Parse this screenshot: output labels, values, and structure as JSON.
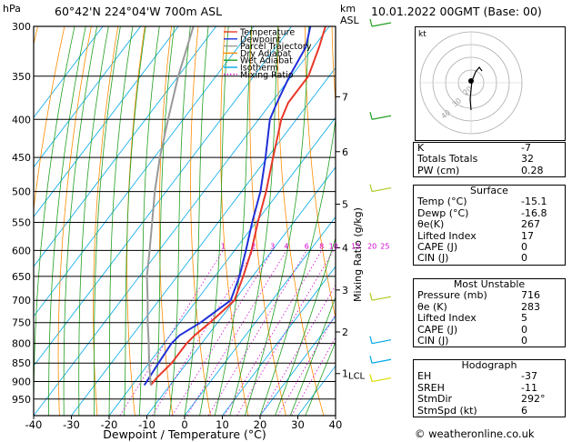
{
  "header": {
    "pressure_unit": "hPa",
    "location": "60°42'N  224°04'W  700m  ASL",
    "km_label": "km",
    "asl_label": "ASL",
    "datetime": "10.01.2022  00GMT  (Base: 00)"
  },
  "chart_data": {
    "type": "line",
    "subtype": "skew-T log-P",
    "xlabel": "Dewpoint / Temperature (°C)",
    "ylabel": "hPa",
    "right_axis_label": "Mixing Ratio (g/kg)",
    "x_ticks": [
      -40,
      -30,
      -20,
      -10,
      0,
      10,
      20,
      30,
      40
    ],
    "pressure_ticks": [
      300,
      350,
      400,
      450,
      500,
      550,
      600,
      650,
      700,
      750,
      800,
      850,
      900,
      950
    ],
    "height_ticks": [
      {
        "km": "1",
        "p": 878
      },
      {
        "km": "2",
        "p": 772
      },
      {
        "km": "3",
        "p": 678
      },
      {
        "km": "4",
        "p": 595
      },
      {
        "km": "5",
        "p": 520
      },
      {
        "km": "6",
        "p": 442
      },
      {
        "km": "7",
        "p": 373
      }
    ],
    "lcl": {
      "label": "LCL",
      "p": 882
    },
    "mixing_ratio_labels": [
      "1",
      "2",
      "3",
      "4",
      "6",
      "8",
      "10",
      "15",
      "20",
      "25"
    ],
    "mixing_ratio_values": [
      1,
      2,
      3,
      4,
      6,
      8,
      10,
      15,
      20,
      25
    ],
    "ylim": [
      1000,
      300
    ],
    "xlim": [
      -40,
      40
    ],
    "legend": {
      "position": "top-right",
      "items": [
        {
          "name": "Temperature",
          "color": "#e8382a",
          "style": "solid"
        },
        {
          "name": "Dewpoint",
          "color": "#2030d8",
          "style": "solid"
        },
        {
          "name": "Parcel Trajectory",
          "color": "#999999",
          "style": "solid"
        },
        {
          "name": "Dry Adiabat",
          "color": "#ff8c00",
          "style": "solid"
        },
        {
          "name": "Wet Adiabat",
          "color": "#22a022",
          "style": "solid"
        },
        {
          "name": "Isotherm",
          "color": "#00a8e8",
          "style": "solid"
        },
        {
          "name": "Mixing Ratio",
          "color": "#d000d0",
          "style": "dotted"
        }
      ]
    },
    "series": [
      {
        "name": "Temperature",
        "p": [
          910,
          890,
          850,
          800,
          780,
          750,
          700,
          650,
          600,
          550,
          500,
          450,
          400,
          380,
          350,
          320,
          300
        ],
        "t": [
          -15.1,
          -15,
          -14,
          -14,
          -13.5,
          -12,
          -10,
          -12.5,
          -15.5,
          -19.5,
          -23.5,
          -28.5,
          -34,
          -35.5,
          -35.5,
          -38.5,
          -41
        ]
      },
      {
        "name": "Dewpoint",
        "p": [
          910,
          890,
          850,
          800,
          780,
          750,
          700,
          650,
          600,
          550,
          500,
          450,
          400,
          380,
          350,
          320,
          300
        ],
        "t": [
          -16.8,
          -17,
          -17.5,
          -18,
          -17.5,
          -14.5,
          -11,
          -13.5,
          -17,
          -21,
          -25,
          -30.5,
          -37,
          -38.5,
          -40.5,
          -42,
          -45
        ]
      },
      {
        "name": "Parcel Trajectory",
        "p": [
          910,
          880,
          850,
          800,
          750,
          700,
          650,
          600,
          550,
          500,
          450,
          400,
          350,
          300
        ],
        "t": [
          -15.1,
          -17.5,
          -20,
          -24,
          -28.5,
          -33,
          -38,
          -42.5,
          -47.5,
          -53,
          -58.5,
          -64,
          -70,
          -76
        ]
      }
    ],
    "isotherms": [
      -100,
      -90,
      -80,
      -70,
      -60,
      -50,
      -40,
      -30,
      -20,
      -10,
      0,
      10,
      20,
      30,
      40
    ],
    "dry_adiabats_theta_k": [
      210,
      220,
      230,
      240,
      250,
      260,
      270,
      280,
      290,
      300,
      310,
      320,
      330,
      340,
      350,
      360,
      370,
      380,
      390,
      400,
      410,
      420,
      430,
      440
    ],
    "wet_adiabats_c": [
      -40,
      -36,
      -32,
      -28,
      -24,
      -20,
      -16,
      -12,
      -8,
      -4,
      0,
      4,
      8,
      12,
      16,
      20,
      24,
      28,
      32
    ],
    "wind_barbs": [
      {
        "p": 300,
        "color": "#22a022"
      },
      {
        "p": 400,
        "color": "#22a022"
      },
      {
        "p": 500,
        "color": "#aacc22"
      },
      {
        "p": 700,
        "color": "#aacc22"
      },
      {
        "p": 800,
        "color": "#00a8e8"
      },
      {
        "p": 850,
        "color": "#00a8e8"
      },
      {
        "p": 900,
        "color": "#dddd00"
      }
    ]
  },
  "hodograph": {
    "unit_label": "kt",
    "ring_labels": [
      "40",
      "30",
      "20"
    ]
  },
  "stats": {
    "top": [
      {
        "label": "K",
        "value": "-7"
      },
      {
        "label": "Totals Totals",
        "value": "32"
      },
      {
        "label": "PW (cm)",
        "value": "0.28"
      }
    ],
    "surface": {
      "title": "Surface",
      "rows": [
        {
          "label": "Temp (°C)",
          "value": "-15.1"
        },
        {
          "label": "Dewp (°C)",
          "value": "-16.8"
        },
        {
          "label": "θe(K)",
          "value": "267"
        },
        {
          "label": "Lifted Index",
          "value": "17"
        },
        {
          "label": "CAPE (J)",
          "value": "0"
        },
        {
          "label": "CIN (J)",
          "value": "0"
        }
      ]
    },
    "most_unstable": {
      "title": "Most Unstable",
      "rows": [
        {
          "label": "Pressure (mb)",
          "value": "716"
        },
        {
          "label": "θe (K)",
          "value": "283"
        },
        {
          "label": "Lifted Index",
          "value": "5"
        },
        {
          "label": "CAPE (J)",
          "value": "0"
        },
        {
          "label": "CIN (J)",
          "value": "0"
        }
      ]
    },
    "hodograph": {
      "title": "Hodograph",
      "rows": [
        {
          "label": "EH",
          "value": "-37"
        },
        {
          "label": "SREH",
          "value": "-11"
        },
        {
          "label": "StmDir",
          "value": "292°"
        },
        {
          "label": "StmSpd (kt)",
          "value": "6"
        }
      ]
    }
  },
  "footer": {
    "copyright": "© weatheronline.co.uk"
  }
}
